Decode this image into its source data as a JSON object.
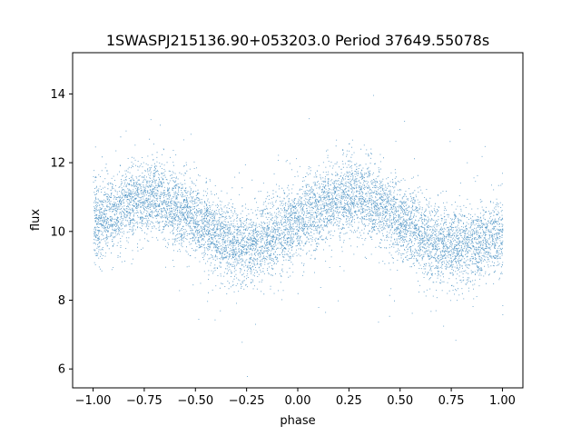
{
  "chart_data": {
    "type": "scatter",
    "title": "1SWASPJ215136.90+053203.0 Period 37649.55078s",
    "xlabel": "phase",
    "ylabel": "flux",
    "xlim": [
      -1.1,
      1.1
    ],
    "ylim": [
      5.45,
      15.2
    ],
    "xticks": [
      -1.0,
      -0.75,
      -0.5,
      -0.25,
      0.0,
      0.25,
      0.5,
      0.75,
      1.0
    ],
    "xtick_labels": [
      "−1.00",
      "−0.75",
      "−0.50",
      "−0.25",
      "0.00",
      "0.25",
      "0.50",
      "0.75",
      "1.00"
    ],
    "yticks": [
      6,
      8,
      10,
      12,
      14
    ],
    "ytick_labels": [
      "6",
      "8",
      "10",
      "12",
      "14"
    ],
    "grid": false,
    "marker_color": "#1f77b4",
    "series": [
      {
        "x": [
          -1.0,
          -0.95,
          -0.9,
          -0.85,
          -0.8,
          -0.75,
          -0.7,
          -0.65,
          -0.6,
          -0.55,
          -0.5,
          -0.45,
          -0.4,
          -0.35,
          -0.3,
          -0.25,
          -0.2,
          -0.15,
          -0.1,
          -0.05,
          0.0,
          0.05,
          0.1,
          0.15,
          0.2,
          0.25,
          0.3,
          0.35,
          0.4,
          0.45,
          0.5,
          0.55,
          0.6,
          0.65,
          0.7,
          0.75,
          0.8,
          0.85,
          0.9,
          0.95,
          1.0
        ],
        "y": [
          10.3,
          10.4,
          10.55,
          10.75,
          10.9,
          11.0,
          11.0,
          10.9,
          10.75,
          10.55,
          10.3,
          10.1,
          9.9,
          9.75,
          9.65,
          9.6,
          9.65,
          9.75,
          9.95,
          10.15,
          10.35,
          10.55,
          10.7,
          10.85,
          10.95,
          11.0,
          11.0,
          10.9,
          10.75,
          10.55,
          10.3,
          10.1,
          9.9,
          9.75,
          9.65,
          9.6,
          9.6,
          9.65,
          9.75,
          9.85,
          10.0
        ],
        "scatter_sd": 0.55
      }
    ]
  }
}
